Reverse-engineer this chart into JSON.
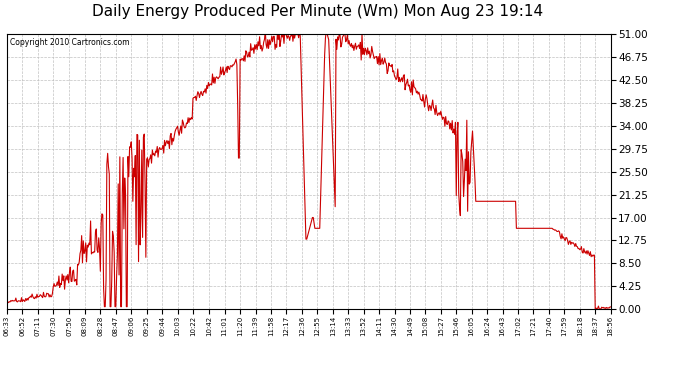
{
  "title": "Daily Energy Produced Per Minute (Wm) Mon Aug 23 19:14",
  "copyright": "Copyright 2010 Cartronics.com",
  "title_fontsize": 11,
  "background_color": "#ffffff",
  "plot_bg_color": "#ffffff",
  "line_color": "#cc0000",
  "grid_color": "#bbbbbb",
  "ylim": [
    0,
    51.0
  ],
  "yticks": [
    0.0,
    4.25,
    8.5,
    12.75,
    17.0,
    21.25,
    25.5,
    29.75,
    34.0,
    38.25,
    42.5,
    46.75,
    51.0
  ],
  "xtick_labels": [
    "06:33",
    "06:52",
    "07:11",
    "07:30",
    "07:50",
    "08:09",
    "08:28",
    "08:47",
    "09:06",
    "09:25",
    "09:44",
    "10:03",
    "10:22",
    "10:42",
    "11:01",
    "11:20",
    "11:39",
    "11:58",
    "12:17",
    "12:36",
    "12:55",
    "13:14",
    "13:33",
    "13:52",
    "14:11",
    "14:30",
    "14:49",
    "15:08",
    "15:27",
    "15:46",
    "16:05",
    "16:24",
    "16:43",
    "17:02",
    "17:21",
    "17:40",
    "17:59",
    "18:18",
    "18:37",
    "18:56"
  ]
}
